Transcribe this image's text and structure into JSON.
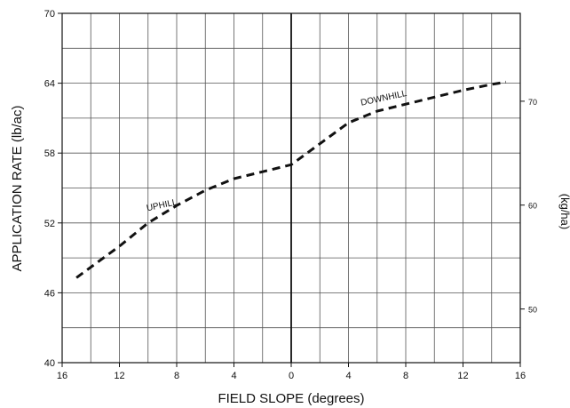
{
  "chart_data": {
    "type": "line",
    "xlabel": "FIELD SLOPE (degrees)",
    "ylabel": "APPLICATION RATE (lb/ac)",
    "y2label": "(kg/ha)",
    "x_tick_labels": [
      "16",
      "12",
      "8",
      "4",
      "0",
      "4",
      "8",
      "12",
      "16"
    ],
    "xlim": [
      -16,
      16
    ],
    "ylim": [
      40,
      70
    ],
    "y_ticks": [
      40,
      46,
      52,
      58,
      64,
      70
    ],
    "y2_ticks": [
      50,
      60,
      70
    ],
    "grid": true,
    "series": [
      {
        "values": [
          {
            "x": -15,
            "y": 47.3
          },
          {
            "x": -12,
            "y": 50.0
          },
          {
            "x": -10,
            "y": 52.0
          },
          {
            "x": -8,
            "y": 53.5
          },
          {
            "x": -6,
            "y": 54.8
          },
          {
            "x": -4,
            "y": 55.8
          },
          {
            "x": -2,
            "y": 56.4
          },
          {
            "x": 0,
            "y": 57.0
          },
          {
            "x": 2,
            "y": 58.8
          },
          {
            "x": 4,
            "y": 60.6
          },
          {
            "x": 6,
            "y": 61.6
          },
          {
            "x": 8,
            "y": 62.2
          },
          {
            "x": 10,
            "y": 62.8
          },
          {
            "x": 12,
            "y": 63.4
          },
          {
            "x": 14,
            "y": 63.9
          },
          {
            "x": 15,
            "y": 64.1
          }
        ]
      }
    ],
    "annotations": [
      {
        "text": "UPHILL",
        "x": -9,
        "y": 53.3
      },
      {
        "text": "DOWNHILL",
        "x": 6.5,
        "y": 62.5
      }
    ]
  }
}
